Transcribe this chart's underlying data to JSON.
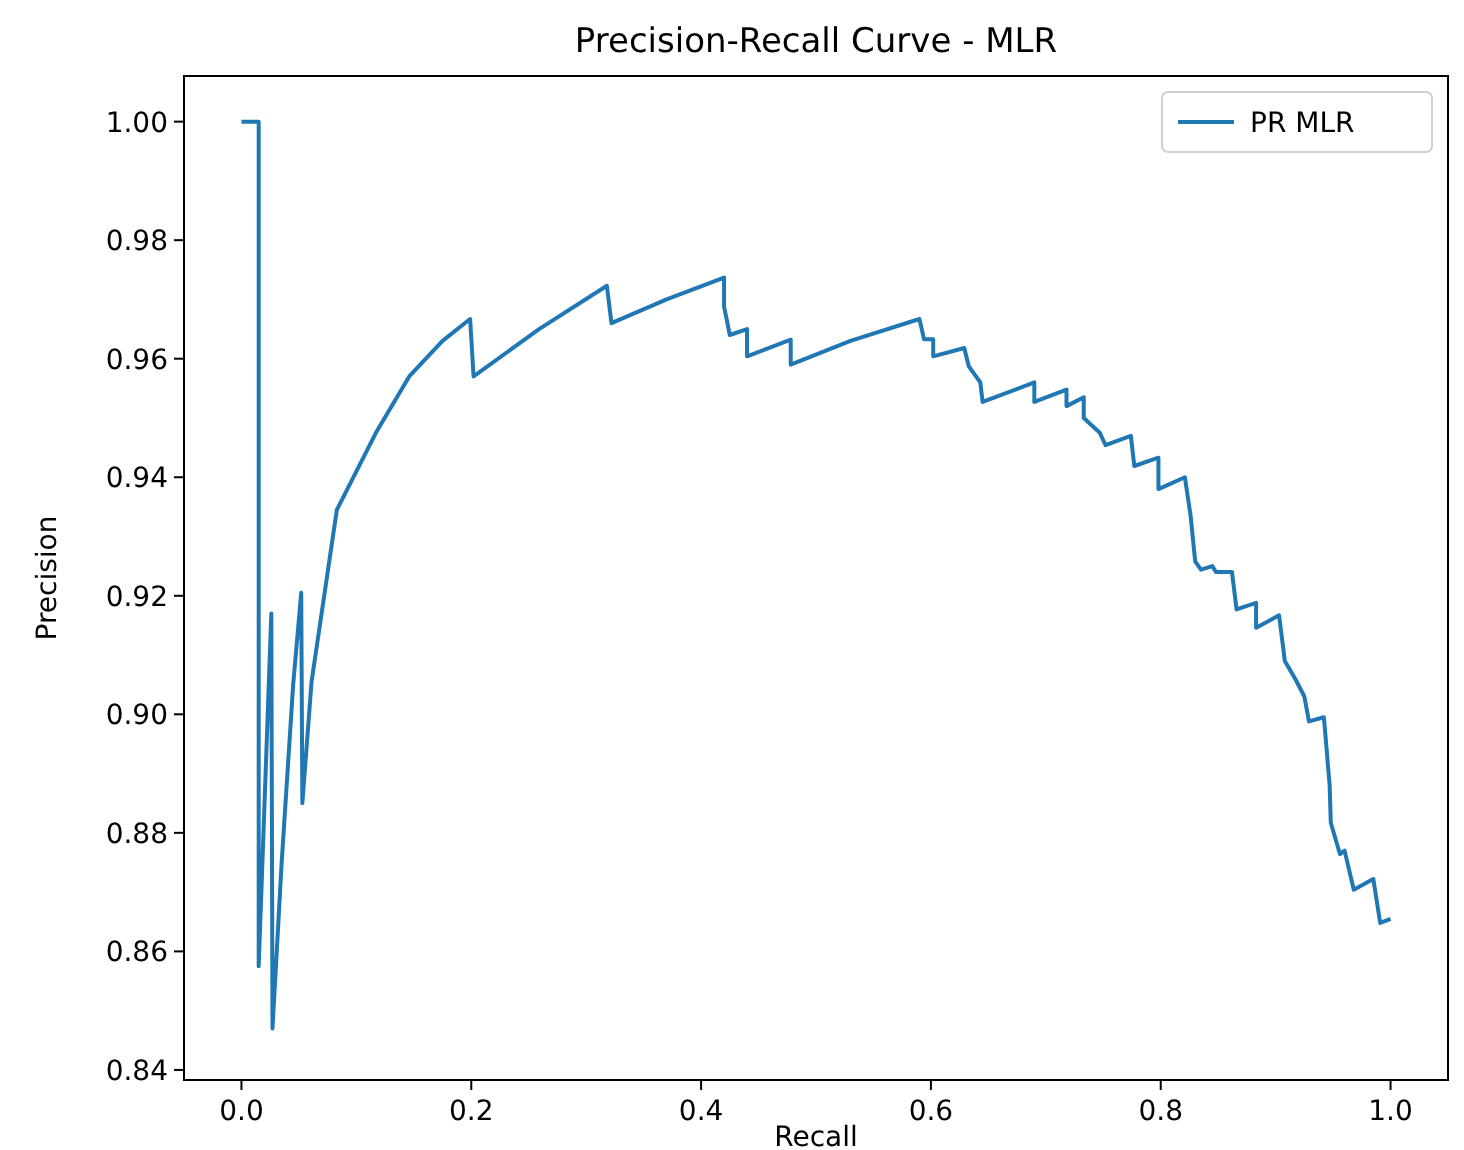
{
  "chart_data": {
    "type": "line",
    "title": "Precision-Recall Curve - MLR",
    "xlabel": "Recall",
    "ylabel": "Precision",
    "xlim": [
      -0.05,
      1.05
    ],
    "ylim": [
      0.8383,
      1.0077
    ],
    "xticks": [
      {
        "value": 0,
        "label": "0.0"
      },
      {
        "value": 0.2,
        "label": "0.2"
      },
      {
        "value": 0.4,
        "label": "0.4"
      },
      {
        "value": 0.6,
        "label": "0.6"
      },
      {
        "value": 0.8,
        "label": "0.8"
      },
      {
        "value": 1,
        "label": "1.0"
      }
    ],
    "yticks": [
      {
        "value": 0.84,
        "label": "0.84"
      },
      {
        "value": 0.86,
        "label": "0.86"
      },
      {
        "value": 0.88,
        "label": "0.88"
      },
      {
        "value": 0.9,
        "label": "0.90"
      },
      {
        "value": 0.92,
        "label": "0.92"
      },
      {
        "value": 0.94,
        "label": "0.94"
      },
      {
        "value": 0.96,
        "label": "0.96"
      },
      {
        "value": 0.98,
        "label": "0.98"
      },
      {
        "value": 1,
        "label": "1.00"
      }
    ],
    "grid": false,
    "legend": "top right",
    "series": [
      {
        "name": "PR MLR",
        "color": "#1f77b4",
        "x": [
          0,
          0.015,
          0.015,
          0.026,
          0.027,
          0.035,
          0.045,
          0.052,
          0.053,
          0.061,
          0.083,
          0.117,
          0.146,
          0.175,
          0.199,
          0.202,
          0.259,
          0.318,
          0.322,
          0.37,
          0.42,
          0.42,
          0.425,
          0.44,
          0.44,
          0.478,
          0.478,
          0.53,
          0.59,
          0.594,
          0.602,
          0.602,
          0.629,
          0.633,
          0.643,
          0.645,
          0.69,
          0.69,
          0.718,
          0.718,
          0.733,
          0.733,
          0.747,
          0.752,
          0.774,
          0.777,
          0.798,
          0.798,
          0.821,
          0.826,
          0.83,
          0.835,
          0.845,
          0.848,
          0.862,
          0.866,
          0.883,
          0.883,
          0.903,
          0.908,
          0.917,
          0.925,
          0.929,
          0.942,
          0.947,
          0.948,
          0.956,
          0.96,
          0.968,
          0.985,
          0.991,
          1
        ],
        "values": [
          1,
          1,
          0.8575,
          0.917,
          0.847,
          0.875,
          0.905,
          0.9205,
          0.885,
          0.9055,
          0.9345,
          0.9475,
          0.957,
          0.963,
          0.9667,
          0.957,
          0.965,
          0.9723,
          0.966,
          0.97,
          0.9737,
          0.9688,
          0.964,
          0.965,
          0.9604,
          0.9632,
          0.959,
          0.963,
          0.9667,
          0.9633,
          0.9633,
          0.9604,
          0.9618,
          0.9587,
          0.956,
          0.9527,
          0.956,
          0.9527,
          0.9548,
          0.952,
          0.9535,
          0.95,
          0.9475,
          0.9454,
          0.947,
          0.9419,
          0.9433,
          0.938,
          0.94,
          0.9335,
          0.9258,
          0.9244,
          0.925,
          0.924,
          0.924,
          0.9177,
          0.9188,
          0.9146,
          0.9167,
          0.909,
          0.906,
          0.903,
          0.8988,
          0.8995,
          0.888,
          0.8817,
          0.8764,
          0.877,
          0.8704,
          0.8722,
          0.8648,
          0.8655
        ]
      }
    ]
  }
}
